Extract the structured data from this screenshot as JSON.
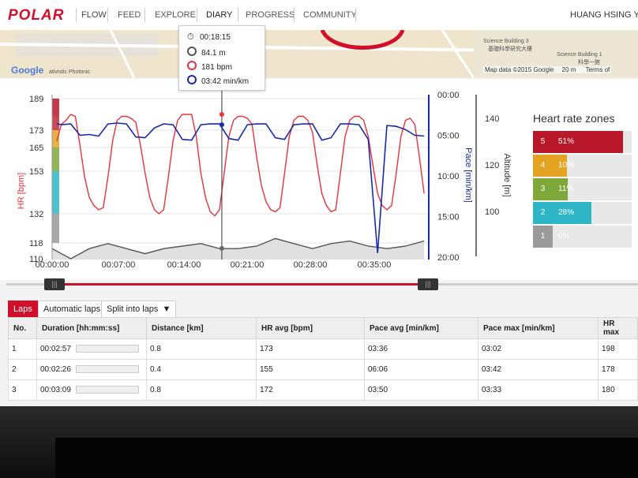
{
  "nav": {
    "logo": "POLAR",
    "product": "FLOW",
    "items": [
      "FEED",
      "EXPLORE",
      "DIARY",
      "PROGRESS",
      "COMMUNITY"
    ],
    "active": "DIARY",
    "user": "HUANG HSING YI"
  },
  "map": {
    "google": "Google",
    "lab_label": "ativistic Photonic",
    "building3": "Science Building 3",
    "building3_cn": "基礎科學研究大樓",
    "building1": "Science Building 1",
    "building1_cn": "科學一館",
    "data": "Map data ©2015 Google",
    "scale": "20 m",
    "terms": "Terms of"
  },
  "tooltip": {
    "time": "00:18:15",
    "altitude": "84.1 m",
    "hr": "181 bpm",
    "pace": "03:42 min/km"
  },
  "chart_data": {
    "type": "line",
    "x_ticks": [
      "00:00:00",
      "00:07:00",
      "00:14:00",
      "00:21:00",
      "00:28:00",
      "00:35:00"
    ],
    "hr_ticks": [
      "189",
      "173",
      "165",
      "153",
      "132",
      "118",
      "110"
    ],
    "pace_ticks": [
      "00:00",
      "05:00",
      "10:00",
      "15:00",
      "20:00"
    ],
    "alt_ticks": [
      "140",
      "120",
      "100"
    ],
    "ylabel_hr": "HR [bpm]",
    "ylabel_pace": "Pace [min/km]",
    "ylabel_alt": "Altitude [m]",
    "cursor_x": "00:18:15",
    "series": [
      {
        "name": "HR [bpm]",
        "color": "#e8323c",
        "x_min": [
          0.5,
          1,
          1.5,
          2,
          2.5,
          3,
          3.5,
          4,
          4.5,
          5,
          5.5,
          6,
          6.5,
          7,
          7.5,
          8,
          8.5,
          9,
          9.5,
          10,
          10.5,
          11,
          11.5,
          12,
          12.5,
          13,
          13.5,
          14,
          14.5,
          15,
          15.5,
          16,
          16.5,
          17,
          17.5,
          18,
          18.5,
          19,
          19.5,
          20,
          20.5,
          21,
          21.5,
          22,
          22.5,
          23,
          23.5,
          24,
          24.5,
          25,
          25.5,
          26,
          26.5,
          27,
          27.5,
          28,
          28.5,
          29,
          29.5,
          30,
          30.5,
          31,
          31.5,
          32,
          32.5,
          33,
          33.5,
          34,
          34.5,
          35,
          35.5,
          36,
          36.5,
          37,
          37.5,
          38,
          38.5,
          39,
          39.5,
          40
        ],
        "values": [
          168,
          176,
          178,
          181,
          180,
          166,
          150,
          140,
          136,
          134,
          135,
          150,
          168,
          178,
          180,
          180,
          179,
          177,
          166,
          152,
          140,
          134,
          132,
          134,
          150,
          168,
          178,
          181,
          181,
          181,
          170,
          152,
          140,
          133,
          131,
          134,
          152,
          170,
          178,
          180,
          180,
          179,
          176,
          160,
          146,
          138,
          134,
          133,
          135,
          152,
          170,
          178,
          180,
          180,
          178,
          172,
          156,
          142,
          136,
          133,
          134,
          152,
          170,
          178,
          180,
          180,
          178,
          170,
          156,
          142,
          136,
          134,
          136,
          152,
          170,
          178,
          179,
          176,
          160,
          142
        ]
      },
      {
        "name": "Pace [min/km]",
        "color": "#1a2aa8",
        "x_min": [
          0.5,
          1,
          2,
          3,
          4,
          5,
          6,
          7,
          8,
          9,
          10,
          11,
          12,
          13,
          14,
          15,
          16,
          17,
          18,
          19,
          20,
          21,
          22,
          23,
          24,
          25,
          26,
          27,
          28,
          29,
          30,
          31,
          32,
          33,
          34,
          35,
          36,
          37,
          38,
          39,
          40
        ],
        "values": [
          3.6,
          3.7,
          3.6,
          5.0,
          4.9,
          5.1,
          3.6,
          3.5,
          3.6,
          5.2,
          5.3,
          4.1,
          3.6,
          3.7,
          5.5,
          5.6,
          3.7,
          3.6,
          3.6,
          5.4,
          5.6,
          3.7,
          3.6,
          3.6,
          5.3,
          5.5,
          3.7,
          3.6,
          3.6,
          5.6,
          5.3,
          3.6,
          3.6,
          3.7,
          5.5,
          19.5,
          3.8,
          3.9,
          4.3,
          5.0,
          5.1
        ]
      },
      {
        "name": "Altitude [m]",
        "color": "#555555",
        "x_min": [
          0,
          2,
          4,
          6,
          8,
          10,
          12,
          14,
          16,
          18,
          20,
          22,
          24,
          26,
          28,
          30,
          32,
          34,
          36,
          38,
          40
        ],
        "values": [
          84,
          80,
          84,
          86,
          84,
          82,
          84,
          85,
          86,
          84,
          84,
          85,
          88,
          86,
          84,
          86,
          87,
          85,
          84,
          85,
          87
        ]
      }
    ]
  },
  "heart_rate_zones": {
    "title": "Heart rate zones",
    "zones": [
      {
        "zone": "5",
        "pct": "51%",
        "fraction": 0.51,
        "color": "#b8182a"
      },
      {
        "zone": "4",
        "pct": "10%",
        "fraction": 0.1,
        "color": "#e5a322"
      },
      {
        "zone": "3",
        "pct": "11%",
        "fraction": 0.11,
        "color": "#7fa83a"
      },
      {
        "zone": "2",
        "pct": "28%",
        "fraction": 0.28,
        "color": "#2fb6c6"
      },
      {
        "zone": "1",
        "pct": "0%",
        "fraction": 0.0,
        "color": "#9a9a9a"
      }
    ]
  },
  "laps": {
    "tabs": [
      "Laps",
      "Automatic laps",
      "Split into laps"
    ],
    "active_tab": "Laps",
    "columns": [
      "No.",
      "Duration [hh:mm:ss]",
      "Distance [km]",
      "HR avg [bpm]",
      "Pace avg [min/km]",
      "Pace max [min/km]",
      "HR max"
    ],
    "rows": [
      [
        "1",
        "00:02:57",
        "0.8",
        "173",
        "03:36",
        "03:02",
        "198"
      ],
      [
        "2",
        "00:02:26",
        "0.4",
        "155",
        "06:06",
        "03:42",
        "178"
      ],
      [
        "3",
        "00:03:09",
        "0.8",
        "172",
        "03:50",
        "03:33",
        "180"
      ]
    ]
  }
}
